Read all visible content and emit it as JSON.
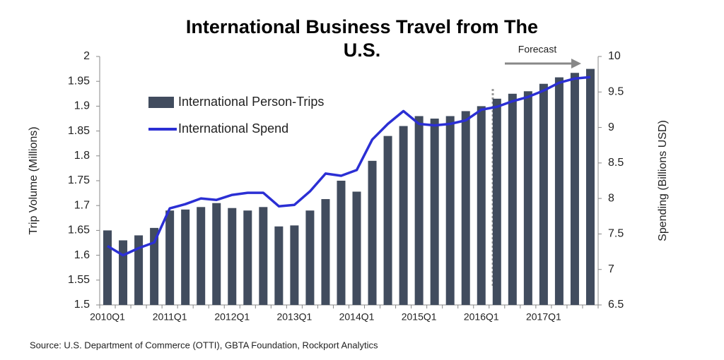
{
  "chart_data": {
    "type": "bar-line",
    "title": "International Business Travel from The U.S.",
    "y_label": "Trip Volume (Millions)",
    "y2_label": "Spending (Billions USD)",
    "annotation": "Forecast",
    "source": "Source: U.S. Department of Commerce (OTTI), GBTA Foundation, Rockport Analytics",
    "legend": "upper left",
    "categories": [
      "2010Q1",
      null,
      null,
      null,
      "2011Q1",
      null,
      null,
      null,
      "2012Q1",
      null,
      null,
      null,
      "2013Q1",
      null,
      null,
      null,
      "2014Q1",
      null,
      null,
      null,
      "2015Q1",
      null,
      null,
      null,
      "2016Q1",
      null,
      null,
      null,
      "2017Q1",
      null,
      null,
      null
    ],
    "series": [
      {
        "name": "International Person-Trips",
        "type": "bar",
        "color": "#414c5e",
        "values": [
          1.65,
          1.63,
          1.64,
          1.655,
          1.69,
          1.692,
          1.697,
          1.705,
          1.695,
          1.69,
          1.697,
          1.658,
          1.66,
          1.69,
          1.713,
          1.75,
          1.728,
          1.79,
          1.84,
          1.86,
          1.88,
          1.875,
          1.88,
          1.89,
          1.9,
          1.915,
          1.925,
          1.93,
          1.945,
          1.958,
          1.967,
          1.975
        ]
      },
      {
        "name": "International Spend",
        "type": "line",
        "axis": "y2",
        "color": "#2b2fd4",
        "values": [
          7.33,
          7.2,
          7.3,
          7.38,
          7.86,
          7.92,
          8.0,
          7.98,
          8.05,
          8.08,
          8.08,
          7.89,
          7.91,
          8.1,
          8.35,
          8.32,
          8.4,
          8.83,
          9.05,
          9.23,
          9.05,
          9.03,
          9.05,
          9.1,
          9.25,
          9.29,
          9.37,
          9.43,
          9.52,
          9.63,
          9.69,
          9.71
        ]
      }
    ],
    "ylim": [
      1.5,
      2
    ],
    "yticks": [
      1.5,
      1.55,
      1.6,
      1.65,
      1.7,
      1.75,
      1.8,
      1.85,
      1.9,
      1.95,
      2
    ],
    "y2lim": [
      6.5,
      10
    ],
    "y2ticks": [
      6.5,
      7,
      7.5,
      8,
      8.5,
      9,
      9.5,
      10
    ]
  }
}
